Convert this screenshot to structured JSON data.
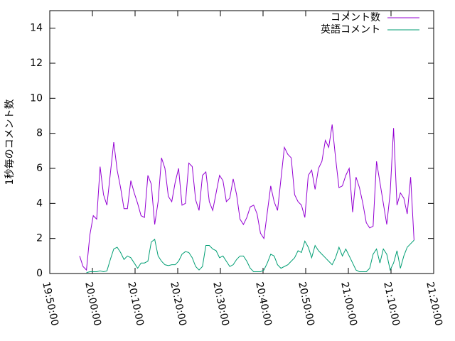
{
  "chart_data": {
    "type": "line",
    "y_label": "1秒毎のコメント数",
    "x": [
      "19:57:00",
      "19:57:48",
      "19:58:36",
      "19:59:24",
      "20:00:12",
      "20:01:00",
      "20:01:48",
      "20:02:36",
      "20:03:24",
      "20:04:12",
      "20:05:00",
      "20:05:48",
      "20:06:36",
      "20:07:24",
      "20:08:12",
      "20:09:00",
      "20:09:48",
      "20:10:36",
      "20:11:24",
      "20:12:12",
      "20:13:00",
      "20:13:48",
      "20:14:36",
      "20:15:24",
      "20:16:12",
      "20:17:00",
      "20:17:48",
      "20:18:36",
      "20:19:24",
      "20:20:12",
      "20:21:00",
      "20:21:48",
      "20:22:36",
      "20:23:24",
      "20:24:12",
      "20:25:00",
      "20:25:48",
      "20:26:36",
      "20:27:24",
      "20:28:12",
      "20:29:00",
      "20:29:48",
      "20:30:36",
      "20:31:24",
      "20:32:12",
      "20:33:00",
      "20:33:48",
      "20:34:36",
      "20:35:24",
      "20:36:12",
      "20:37:00",
      "20:37:48",
      "20:38:36",
      "20:39:24",
      "20:40:12",
      "20:41:00",
      "20:41:48",
      "20:42:36",
      "20:43:24",
      "20:44:12",
      "20:45:00",
      "20:45:48",
      "20:46:36",
      "20:47:24",
      "20:48:12",
      "20:49:00",
      "20:49:48",
      "20:50:36",
      "20:51:24",
      "20:52:12",
      "20:53:00",
      "20:53:48",
      "20:54:36",
      "20:55:24",
      "20:56:12",
      "20:57:00",
      "20:57:48",
      "20:58:36",
      "20:59:24",
      "21:00:12",
      "21:01:00",
      "21:01:48",
      "21:02:36",
      "21:03:24",
      "21:04:12",
      "21:05:00",
      "21:05:48",
      "21:06:36",
      "21:07:24",
      "21:08:12",
      "21:09:00",
      "21:09:48",
      "21:10:36",
      "21:11:24",
      "21:12:12",
      "21:13:00",
      "21:13:48",
      "21:14:36",
      "21:15:24"
    ],
    "series": [
      {
        "name": "コメント数",
        "color": "#9400d3",
        "values": [
          1.0,
          0.4,
          0.2,
          2.2,
          3.3,
          3.1,
          6.1,
          4.5,
          3.9,
          5.7,
          7.5,
          5.9,
          4.9,
          3.7,
          3.7,
          5.3,
          4.6,
          4.0,
          3.3,
          3.2,
          5.6,
          5.1,
          2.8,
          4.1,
          6.6,
          6.0,
          4.4,
          4.1,
          5.2,
          6.0,
          3.9,
          4.0,
          6.3,
          6.1,
          4.2,
          3.6,
          5.6,
          5.8,
          4.1,
          3.6,
          4.6,
          5.6,
          5.3,
          4.1,
          4.3,
          5.4,
          4.5,
          3.1,
          2.8,
          3.2,
          3.8,
          3.9,
          3.4,
          2.3,
          2.0,
          3.5,
          5.0,
          4.1,
          3.6,
          5.4,
          7.2,
          6.8,
          6.6,
          4.5,
          4.1,
          3.9,
          3.2,
          5.6,
          5.9,
          4.8,
          6.0,
          6.4,
          7.6,
          7.2,
          8.5,
          6.6,
          4.9,
          5.0,
          5.6,
          6.0,
          3.5,
          5.5,
          4.9,
          4.0,
          2.9,
          2.6,
          2.7,
          6.4,
          5.2,
          4.0,
          2.8,
          4.6,
          8.3,
          3.9,
          4.6,
          4.3,
          3.4,
          5.5,
          1.9
        ]
      },
      {
        "name": "英語コメント",
        "color": "#009e73",
        "values": [
          null,
          null,
          0.05,
          0.1,
          0.1,
          0.1,
          0.15,
          0.1,
          0.15,
          0.8,
          1.4,
          1.5,
          1.2,
          0.8,
          1.0,
          0.9,
          0.6,
          0.3,
          0.6,
          0.6,
          0.7,
          1.8,
          1.95,
          1.0,
          0.7,
          0.5,
          0.45,
          0.5,
          0.5,
          0.7,
          1.1,
          1.25,
          1.2,
          0.9,
          0.4,
          0.2,
          0.4,
          1.6,
          1.6,
          1.4,
          1.3,
          0.9,
          1.0,
          0.7,
          0.4,
          0.5,
          0.8,
          1.0,
          1.0,
          0.7,
          0.3,
          0.1,
          0.1,
          0.1,
          0.2,
          0.6,
          1.1,
          1.0,
          0.5,
          0.3,
          0.4,
          0.5,
          0.7,
          0.9,
          1.3,
          1.2,
          1.85,
          1.5,
          0.9,
          1.6,
          1.3,
          1.1,
          0.9,
          0.7,
          0.5,
          0.9,
          1.5,
          1.0,
          1.4,
          1.0,
          0.6,
          0.2,
          0.1,
          0.1,
          0.1,
          0.3,
          1.1,
          1.4,
          0.6,
          1.4,
          1.1,
          0.2,
          0.6,
          1.3,
          0.3,
          1.0,
          1.5,
          1.7,
          1.9
        ]
      }
    ],
    "xlim": [
      "19:50:00",
      "21:20:00"
    ],
    "xticks": [
      "19:50:00",
      "20:00:00",
      "20:10:00",
      "20:20:00",
      "20:30:00",
      "20:40:00",
      "20:50:00",
      "21:00:00",
      "21:10:00",
      "21:20:00"
    ],
    "ylim": [
      0,
      15
    ],
    "yticks": [
      0,
      2,
      4,
      6,
      8,
      10,
      12,
      14
    ],
    "grid": false,
    "legend": "top-right"
  }
}
